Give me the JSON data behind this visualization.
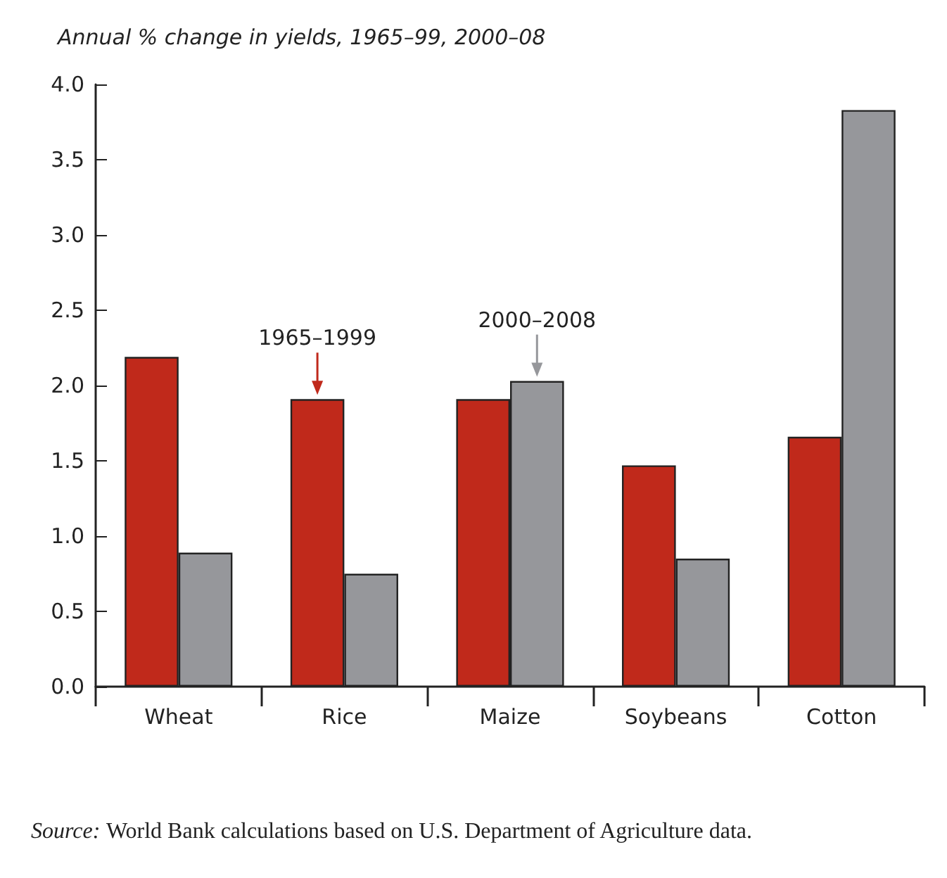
{
  "chart_data": {
    "type": "bar",
    "title": "Annual % change in yields, 1965–99, 2000–08",
    "categories": [
      "Wheat",
      "Rice",
      "Maize",
      "Soybeans",
      "Cotton"
    ],
    "series": [
      {
        "name": "1965–1999",
        "color": "#c0291b",
        "values": [
          2.19,
          1.91,
          1.91,
          1.47,
          1.66
        ]
      },
      {
        "name": "2000–2008",
        "color": "#96979b",
        "values": [
          0.89,
          0.75,
          2.03,
          0.85,
          3.83
        ]
      }
    ],
    "ylim": [
      0,
      4
    ],
    "yticks": [
      {
        "value": 0,
        "label": "0.0"
      },
      {
        "value": 0.5,
        "label": "0.5"
      },
      {
        "value": 1,
        "label": "1.0"
      },
      {
        "value": 1.5,
        "label": "1.5"
      },
      {
        "value": 2,
        "label": "2.0"
      },
      {
        "value": 2.5,
        "label": "2.5"
      },
      {
        "value": 3,
        "label": "3.0"
      },
      {
        "value": 3.5,
        "label": "3.5"
      },
      {
        "value": 4,
        "label": "4.0"
      }
    ],
    "grid": false,
    "annotations": [
      "Source: World Bank calculations based on U.S. Department of Agriculture data."
    ]
  }
}
